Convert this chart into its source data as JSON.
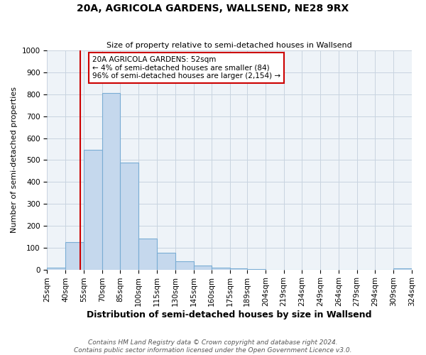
{
  "title": "20A, AGRICOLA GARDENS, WALLSEND, NE28 9RX",
  "subtitle": "Size of property relative to semi-detached houses in Wallsend",
  "xlabel": "Distribution of semi-detached houses by size in Wallsend",
  "ylabel": "Number of semi-detached properties",
  "bar_color": "#c5d8ed",
  "bar_edge_color": "#7aadd4",
  "grid_color": "#c8d4e0",
  "annotation_box_color": "#cc0000",
  "annotation_line_color": "#cc0000",
  "footer_text": "Contains HM Land Registry data © Crown copyright and database right 2024.\nContains public sector information licensed under the Open Government Licence v3.0.",
  "bins": [
    25,
    40,
    55,
    70,
    85,
    100,
    115,
    130,
    145,
    160,
    175,
    189,
    204,
    219,
    234,
    249,
    264,
    279,
    294,
    309,
    324
  ],
  "bin_labels": [
    "25sqm",
    "40sqm",
    "55sqm",
    "70sqm",
    "85sqm",
    "100sqm",
    "115sqm",
    "130sqm",
    "145sqm",
    "160sqm",
    "175sqm",
    "189sqm",
    "204sqm",
    "219sqm",
    "234sqm",
    "249sqm",
    "264sqm",
    "279sqm",
    "294sqm",
    "309sqm",
    "324sqm"
  ],
  "counts": [
    10,
    124,
    548,
    807,
    487,
    140,
    75,
    38,
    18,
    10,
    5,
    2,
    0,
    0,
    0,
    0,
    0,
    0,
    0,
    5
  ],
  "property_size": 52,
  "property_label": "20A AGRICOLA GARDENS: 52sqm",
  "pct_smaller": 4,
  "num_smaller": 84,
  "pct_larger": 96,
  "num_larger": 2154,
  "ylim": [
    0,
    1000
  ],
  "yticks": [
    0,
    100,
    200,
    300,
    400,
    500,
    600,
    700,
    800,
    900,
    1000
  ],
  "background_color": "#ffffff",
  "plot_bg_color": "#eef3f8",
  "title_fontsize": 10,
  "subtitle_fontsize": 8,
  "ylabel_fontsize": 8,
  "xlabel_fontsize": 9,
  "tick_fontsize": 7.5,
  "footer_fontsize": 6.5
}
